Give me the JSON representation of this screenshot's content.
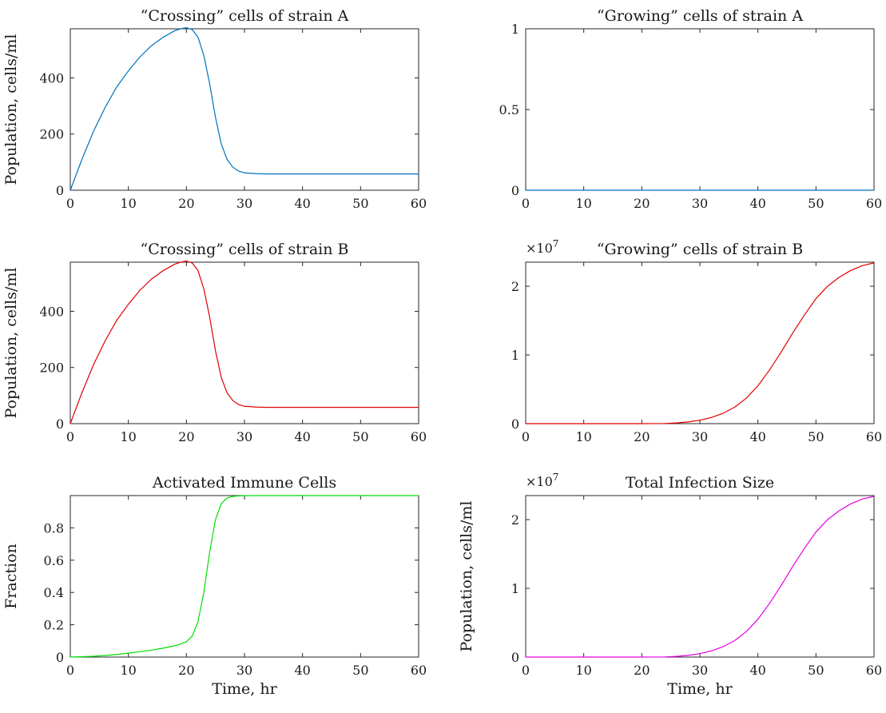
{
  "figure": {
    "background": "#ffffff",
    "axis_color": "#262626"
  },
  "chart_data": [
    {
      "id": "crossing-a",
      "type": "line",
      "title": "“Crossing” cells of strain A",
      "xlabel": "",
      "ylabel": "Population, cells/ml",
      "exponent_label": "",
      "xlim": [
        0,
        60
      ],
      "ylim": [
        0,
        575
      ],
      "xticks": [
        0,
        10,
        20,
        30,
        40,
        50,
        60
      ],
      "xtick_labels": [
        "0",
        "10",
        "20",
        "30",
        "40",
        "50",
        "60"
      ],
      "yticks": [
        0,
        200,
        400
      ],
      "ytick_labels": [
        "0",
        "200",
        "400"
      ],
      "grid": false,
      "series": [
        {
          "color": "#0072BD",
          "x": [
            0,
            2,
            4,
            6,
            8,
            10,
            12,
            14,
            16,
            18,
            19,
            20,
            21,
            22,
            23,
            24,
            25,
            26,
            27,
            28,
            29,
            30,
            32,
            34,
            36,
            40,
            45,
            50,
            55,
            60
          ],
          "y": [
            0,
            110,
            210,
            295,
            368,
            425,
            475,
            515,
            545,
            568,
            575,
            579,
            572,
            545,
            480,
            380,
            260,
            165,
            110,
            82,
            68,
            62,
            59,
            58,
            58,
            58,
            58,
            58,
            58,
            58
          ]
        }
      ]
    },
    {
      "id": "growing-a",
      "type": "line",
      "title": "“Growing” cells of strain A",
      "xlabel": "",
      "ylabel": "",
      "exponent_label": "",
      "xlim": [
        0,
        60
      ],
      "ylim": [
        0,
        1
      ],
      "xticks": [
        0,
        10,
        20,
        30,
        40,
        50,
        60
      ],
      "xtick_labels": [
        "0",
        "10",
        "20",
        "30",
        "40",
        "50",
        "60"
      ],
      "yticks": [
        0,
        0.5,
        1
      ],
      "ytick_labels": [
        "0",
        "0.5",
        "1"
      ],
      "grid": false,
      "series": [
        {
          "color": "#0072BD",
          "x": [
            0,
            60
          ],
          "y": [
            0,
            0
          ]
        }
      ]
    },
    {
      "id": "crossing-b",
      "type": "line",
      "title": "“Crossing” cells of strain B",
      "xlabel": "",
      "ylabel": "Population, cells/ml",
      "exponent_label": "",
      "xlim": [
        0,
        60
      ],
      "ylim": [
        0,
        575
      ],
      "xticks": [
        0,
        10,
        20,
        30,
        40,
        50,
        60
      ],
      "xtick_labels": [
        "0",
        "10",
        "20",
        "30",
        "40",
        "50",
        "60"
      ],
      "yticks": [
        0,
        200,
        400
      ],
      "ytick_labels": [
        "0",
        "200",
        "400"
      ],
      "grid": false,
      "series": [
        {
          "color": "#E00000",
          "x": [
            0,
            2,
            4,
            6,
            8,
            10,
            12,
            14,
            16,
            18,
            19,
            20,
            21,
            22,
            23,
            24,
            25,
            26,
            27,
            28,
            29,
            30,
            32,
            34,
            36,
            40,
            45,
            50,
            55,
            60
          ],
          "y": [
            0,
            110,
            210,
            295,
            368,
            425,
            475,
            515,
            545,
            568,
            575,
            579,
            572,
            545,
            480,
            380,
            260,
            165,
            110,
            82,
            68,
            62,
            59,
            58,
            58,
            58,
            58,
            58,
            58,
            58
          ]
        }
      ]
    },
    {
      "id": "growing-b",
      "type": "line",
      "title": "“Growing” cells of strain B",
      "xlabel": "",
      "ylabel": "",
      "exponent_label": "×10",
      "exponent_power": "7",
      "xlim": [
        0,
        60
      ],
      "ylim": [
        0,
        2.35
      ],
      "xticks": [
        0,
        10,
        20,
        30,
        40,
        50,
        60
      ],
      "xtick_labels": [
        "0",
        "10",
        "20",
        "30",
        "40",
        "50",
        "60"
      ],
      "yticks": [
        0,
        1,
        2
      ],
      "ytick_labels": [
        "0",
        "1",
        "2"
      ],
      "grid": false,
      "series": [
        {
          "color": "#E00000",
          "x": [
            0,
            10,
            20,
            24,
            26,
            28,
            30,
            32,
            34,
            36,
            38,
            40,
            42,
            44,
            46,
            48,
            50,
            52,
            54,
            56,
            58,
            60
          ],
          "y": [
            0,
            0,
            0,
            0.002,
            0.01,
            0.025,
            0.05,
            0.09,
            0.15,
            0.24,
            0.37,
            0.55,
            0.78,
            1.04,
            1.32,
            1.58,
            1.82,
            2.0,
            2.13,
            2.23,
            2.3,
            2.34
          ]
        }
      ]
    },
    {
      "id": "immune",
      "type": "line",
      "title": "Activated Immune Cells",
      "xlabel": "Time, hr",
      "ylabel": "Fraction",
      "exponent_label": "",
      "xlim": [
        0,
        60
      ],
      "ylim": [
        0,
        1
      ],
      "xticks": [
        0,
        10,
        20,
        30,
        40,
        50,
        60
      ],
      "xtick_labels": [
        "0",
        "10",
        "20",
        "30",
        "40",
        "50",
        "60"
      ],
      "yticks": [
        0,
        0.2,
        0.4,
        0.6,
        0.8
      ],
      "ytick_labels": [
        "0",
        "0.2",
        "0.4",
        "0.6",
        "0.8"
      ],
      "grid": false,
      "series": [
        {
          "color": "#00DD00",
          "x": [
            0,
            2,
            4,
            6,
            8,
            10,
            12,
            14,
            16,
            18,
            19,
            20,
            21,
            22,
            23,
            24,
            25,
            26,
            27,
            28,
            29,
            30,
            32,
            35,
            40,
            45,
            50,
            55,
            60
          ],
          "y": [
            0,
            0.002,
            0.005,
            0.01,
            0.016,
            0.024,
            0.033,
            0.043,
            0.055,
            0.07,
            0.08,
            0.095,
            0.13,
            0.22,
            0.4,
            0.65,
            0.85,
            0.95,
            0.985,
            0.995,
            0.998,
            0.999,
            1.0,
            1.0,
            1.0,
            1.0,
            1.0,
            1.0,
            1.0
          ]
        }
      ]
    },
    {
      "id": "total",
      "type": "line",
      "title": "Total Infection Size",
      "xlabel": "Time, hr",
      "ylabel": "Population, cells/ml",
      "exponent_label": "×10",
      "exponent_power": "7",
      "xlim": [
        0,
        60
      ],
      "ylim": [
        0,
        2.35
      ],
      "xticks": [
        0,
        10,
        20,
        30,
        40,
        50,
        60
      ],
      "xtick_labels": [
        "0",
        "10",
        "20",
        "30",
        "40",
        "50",
        "60"
      ],
      "yticks": [
        0,
        1,
        2
      ],
      "ytick_labels": [
        "0",
        "1",
        "2"
      ],
      "grid": false,
      "series": [
        {
          "color": "#E600E6",
          "x": [
            0,
            10,
            20,
            24,
            26,
            28,
            30,
            32,
            34,
            36,
            38,
            40,
            42,
            44,
            46,
            48,
            50,
            52,
            54,
            56,
            58,
            60
          ],
          "y": [
            0,
            0,
            0,
            0.002,
            0.01,
            0.025,
            0.05,
            0.09,
            0.15,
            0.24,
            0.37,
            0.55,
            0.78,
            1.04,
            1.32,
            1.58,
            1.82,
            2.0,
            2.13,
            2.23,
            2.3,
            2.34
          ]
        }
      ]
    }
  ]
}
